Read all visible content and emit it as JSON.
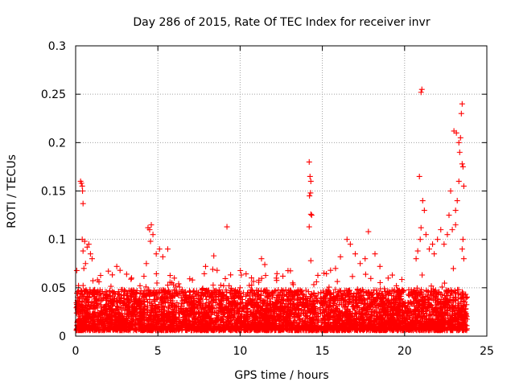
{
  "chart_data": {
    "type": "scatter",
    "title": "Day 286 of 2015, Rate Of TEC Index for receiver invr",
    "xlabel": "GPS time / hours",
    "ylabel": "ROTI / TECUs",
    "xlim": [
      0,
      25
    ],
    "ylim": [
      0,
      0.3
    ],
    "xticks": [
      0,
      5,
      10,
      15,
      20,
      25
    ],
    "xtick_labels": [
      "0",
      "5",
      "10",
      "15",
      "20",
      "25"
    ],
    "yticks": [
      0,
      0.05,
      0.1,
      0.15,
      0.2,
      0.25,
      0.3
    ],
    "ytick_labels": [
      "0",
      "0.05",
      "0.1",
      "0.15",
      "0.2",
      "0.25",
      "0.3"
    ],
    "grid": true,
    "marker": "+",
    "color": "#ff0000",
    "series": [
      {
        "name": "ROTI",
        "points": [
          [
            0.3,
            0.16
          ],
          [
            0.35,
            0.158
          ],
          [
            0.4,
            0.155
          ],
          [
            0.42,
            0.15
          ],
          [
            0.45,
            0.137
          ],
          [
            0.4,
            0.1
          ],
          [
            0.55,
            0.098
          ],
          [
            0.45,
            0.088
          ],
          [
            0.7,
            0.092
          ],
          [
            0.8,
            0.095
          ],
          [
            0.9,
            0.085
          ],
          [
            1.0,
            0.08
          ],
          [
            0.6,
            0.075
          ],
          [
            0.5,
            0.07
          ],
          [
            2.5,
            0.072
          ],
          [
            2.7,
            0.068
          ],
          [
            3.1,
            0.064
          ],
          [
            3.4,
            0.06
          ],
          [
            4.4,
            0.112
          ],
          [
            4.5,
            0.11
          ],
          [
            4.6,
            0.115
          ],
          [
            4.7,
            0.105
          ],
          [
            4.55,
            0.098
          ],
          [
            4.9,
            0.085
          ],
          [
            5.1,
            0.09
          ],
          [
            5.3,
            0.082
          ],
          [
            5.6,
            0.09
          ],
          [
            4.3,
            0.075
          ],
          [
            6.0,
            0.06
          ],
          [
            7.1,
            0.058
          ],
          [
            7.9,
            0.072
          ],
          [
            8.4,
            0.083
          ],
          [
            8.6,
            0.068
          ],
          [
            9.2,
            0.113
          ],
          [
            10.0,
            0.05
          ],
          [
            11.3,
            0.08
          ],
          [
            11.5,
            0.074
          ],
          [
            12.2,
            0.06
          ],
          [
            12.6,
            0.062
          ],
          [
            13.2,
            0.055
          ],
          [
            14.2,
            0.18
          ],
          [
            14.25,
            0.165
          ],
          [
            14.3,
            0.16
          ],
          [
            14.28,
            0.148
          ],
          [
            14.22,
            0.145
          ],
          [
            14.3,
            0.126
          ],
          [
            14.35,
            0.125
          ],
          [
            14.2,
            0.113
          ],
          [
            14.3,
            0.078
          ],
          [
            15.1,
            0.065
          ],
          [
            15.5,
            0.068
          ],
          [
            15.8,
            0.07
          ],
          [
            16.1,
            0.082
          ],
          [
            16.5,
            0.1
          ],
          [
            16.7,
            0.095
          ],
          [
            17.0,
            0.085
          ],
          [
            17.3,
            0.075
          ],
          [
            17.6,
            0.08
          ],
          [
            17.8,
            0.108
          ],
          [
            18.2,
            0.085
          ],
          [
            18.5,
            0.072
          ],
          [
            19.0,
            0.06
          ],
          [
            19.5,
            0.052
          ],
          [
            20.7,
            0.08
          ],
          [
            20.8,
            0.088
          ],
          [
            20.95,
            0.1
          ],
          [
            21.0,
            0.112
          ],
          [
            20.9,
            0.165
          ],
          [
            21.1,
            0.14
          ],
          [
            21.2,
            0.13
          ],
          [
            21.3,
            0.105
          ],
          [
            21.5,
            0.09
          ],
          [
            21.7,
            0.095
          ],
          [
            21.8,
            0.085
          ],
          [
            22.0,
            0.1
          ],
          [
            22.2,
            0.11
          ],
          [
            22.4,
            0.095
          ],
          [
            22.6,
            0.105
          ],
          [
            22.7,
            0.125
          ],
          [
            22.9,
            0.11
          ],
          [
            23.1,
            0.13
          ],
          [
            23.2,
            0.14
          ],
          [
            23.1,
            0.115
          ],
          [
            23.0,
            0.212
          ],
          [
            23.15,
            0.21
          ],
          [
            23.3,
            0.2
          ],
          [
            23.35,
            0.19
          ],
          [
            23.4,
            0.205
          ],
          [
            23.5,
            0.178
          ],
          [
            23.55,
            0.175
          ],
          [
            23.45,
            0.23
          ],
          [
            23.5,
            0.24
          ],
          [
            23.6,
            0.155
          ],
          [
            23.55,
            0.1
          ],
          [
            23.5,
            0.09
          ],
          [
            23.6,
            0.08
          ],
          [
            23.3,
            0.16
          ],
          [
            22.8,
            0.15
          ],
          [
            21.0,
            0.252
          ],
          [
            21.05,
            0.255
          ]
        ]
      }
    ]
  }
}
